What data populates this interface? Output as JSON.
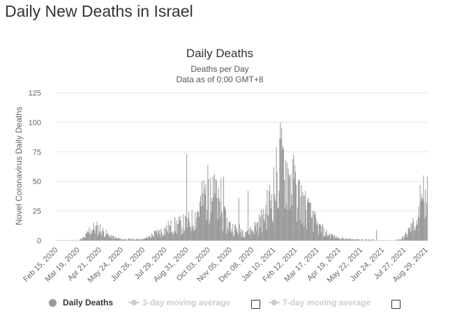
{
  "page": {
    "title": "Daily New Deaths in Israel"
  },
  "chart_data": {
    "type": "bar",
    "title": "Daily Deaths",
    "subtitles": [
      "Deaths per Day",
      "Data as of 0:00 GMT+8"
    ],
    "ylabel": "Novel Coronavirus Daily Deaths",
    "xlabel": "",
    "ylim": [
      0,
      125
    ],
    "yticks": [
      0,
      25,
      50,
      75,
      100,
      125
    ],
    "grid": true,
    "legend_position": "bottom-left",
    "x_start_date": "Feb 15, 2020",
    "x_tick_labels": [
      "Feb 15, 2020",
      "Mar 19, 2020",
      "Apr 21, 2020",
      "May 24, 2020",
      "Jun 26, 2020",
      "Jul 29, 2020",
      "Aug 31, 2020",
      "Oct 03, 2020",
      "Nov 05, 2020",
      "Dec 08, 2020",
      "Jan 10, 2021",
      "Feb 12, 2021",
      "Mar 17, 2021",
      "Apr 19, 2021",
      "May 22, 2021",
      "Jun 24, 2021",
      "Jul 27, 2021",
      "Aug 29, 2021"
    ],
    "bar_color": "#999999",
    "series": [
      {
        "name": "Daily Deaths",
        "active": true,
        "keypoints": [
          [
            "Feb 15, 2020",
            0
          ],
          [
            "Mar 20, 2020",
            0
          ],
          [
            "Mar 30, 2020",
            3
          ],
          [
            "Apr 5, 2020",
            8
          ],
          [
            "Apr 12, 2020",
            10
          ],
          [
            "Apr 21, 2020",
            10
          ],
          [
            "Apr 30, 2020",
            6
          ],
          [
            "May 10, 2020",
            3
          ],
          [
            "May 24, 2020",
            1
          ],
          [
            "Jun 26, 2020",
            1
          ],
          [
            "Jul 5, 2020",
            3
          ],
          [
            "Jul 15, 2020",
            6
          ],
          [
            "Jul 29, 2020",
            9
          ],
          [
            "Aug 10, 2020",
            12
          ],
          [
            "Aug 20, 2020",
            13
          ],
          [
            "Aug 31, 2020",
            14
          ],
          [
            "Sep 10, 2020",
            17
          ],
          [
            "Sep 20, 2020",
            28
          ],
          [
            "Sep 27, 2020",
            38
          ],
          [
            "Oct 3, 2020",
            40
          ],
          [
            "Oct 12, 2020",
            37
          ],
          [
            "Oct 20, 2020",
            25
          ],
          [
            "Oct 30, 2020",
            15
          ],
          [
            "Nov 10, 2020",
            10
          ],
          [
            "Nov 25, 2020",
            8
          ],
          [
            "Dec 8, 2020",
            9
          ],
          [
            "Dec 20, 2020",
            15
          ],
          [
            "Jan 1, 2021",
            28
          ],
          [
            "Jan 10, 2021",
            42
          ],
          [
            "Jan 17, 2021",
            55
          ],
          [
            "Jan 23, 2021",
            62
          ],
          [
            "Jan 30, 2021",
            58
          ],
          [
            "Feb 6, 2021",
            50
          ],
          [
            "Feb 12, 2021",
            42
          ],
          [
            "Feb 22, 2021",
            32
          ],
          [
            "Mar 5, 2021",
            22
          ],
          [
            "Mar 17, 2021",
            12
          ],
          [
            "Mar 30, 2021",
            6
          ],
          [
            "Apr 19, 2021",
            2
          ],
          [
            "May 1, 2021",
            1
          ],
          [
            "Jul 10, 2021",
            0
          ],
          [
            "Jul 20, 2021",
            1
          ],
          [
            "Jul 27, 2021",
            3
          ],
          [
            "Aug 5, 2021",
            10
          ],
          [
            "Aug 15, 2021",
            17
          ],
          [
            "Aug 22, 2021",
            24
          ],
          [
            "Aug 31, 2021",
            28
          ]
        ],
        "spikes": [
          [
            "Aug 31, 2020",
            73
          ],
          [
            "Oct 3, 2020",
            52
          ],
          [
            "Oct 6, 2020",
            53
          ],
          [
            "Oct 10, 2020",
            54
          ],
          [
            "Oct 14, 2020",
            52
          ],
          [
            "Oct 22, 2020",
            53
          ],
          [
            "Oct 26, 2020",
            54
          ],
          [
            "Nov 18, 2020",
            36
          ],
          [
            "Dec 2, 2020",
            42
          ],
          [
            "Dec 25, 2020",
            27
          ],
          [
            "Jan 20, 2021",
            100
          ],
          [
            "Jan 23, 2021",
            78
          ],
          [
            "Jan 24, 2021",
            80
          ],
          [
            "Jan 28, 2021",
            68
          ],
          [
            "Feb 2, 2021",
            56
          ],
          [
            "Feb 10, 2021",
            52
          ],
          [
            "Feb 16, 2021",
            50
          ],
          [
            "Mar 6, 2021",
            32
          ],
          [
            "Mar 10, 2021",
            25
          ],
          [
            "Jun 15, 2021",
            9
          ],
          [
            "Aug 20, 2021",
            47
          ],
          [
            "Aug 25, 2021",
            55
          ],
          [
            "Aug 31, 2021",
            54
          ]
        ]
      },
      {
        "name": "3-day moving average",
        "active": false
      },
      {
        "name": "7-day moving average",
        "active": false
      }
    ]
  }
}
